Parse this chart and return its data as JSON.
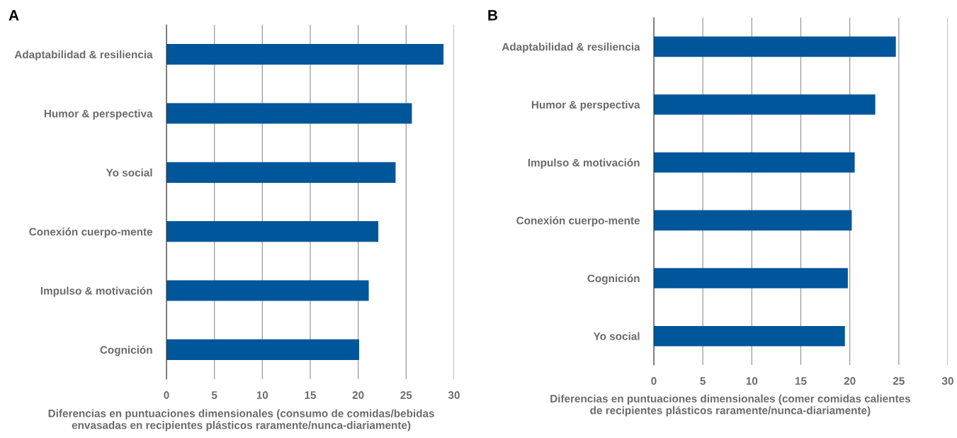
{
  "chart_data": [
    {
      "type": "bar",
      "orientation": "horizontal",
      "title": "A",
      "xlabel": "Diferencias en puntuaciones dimensionales (consumo de comidas/bebidas\nenvasadas en recipientes plásticos raramente/nunca-diariamente)",
      "categories": [
        "Adaptabilidad & resiliencia",
        "Humor & perspectiva",
        "Yo social",
        "Conexión cuerpo-mente",
        "Impulso & motivación",
        "Cognición"
      ],
      "values": [
        28.9,
        25.6,
        23.9,
        22.1,
        21.1,
        20.1
      ],
      "color": "#00569a",
      "xlim": [
        0,
        30
      ],
      "xticks": [
        0,
        5,
        10,
        15,
        20,
        25,
        30
      ],
      "grid": "x"
    },
    {
      "type": "bar",
      "orientation": "horizontal",
      "title": "B",
      "xlabel": "Diferencias en puntuaciones dimensionales (comer comidas calientes\nde recipientes plásticos raramente/nunca-diariamente)",
      "categories": [
        "Adaptabilidad & resiliencia",
        "Humor & perspectiva",
        "Impulso & motivación",
        "Conexión cuerpo-mente",
        "Cognición",
        "Yo social"
      ],
      "values": [
        24.7,
        22.6,
        20.5,
        20.2,
        19.8,
        19.5
      ],
      "color": "#00569a",
      "xlim": [
        0,
        30
      ],
      "xticks": [
        0,
        5,
        10,
        15,
        20,
        25,
        30
      ],
      "grid": "x"
    }
  ]
}
